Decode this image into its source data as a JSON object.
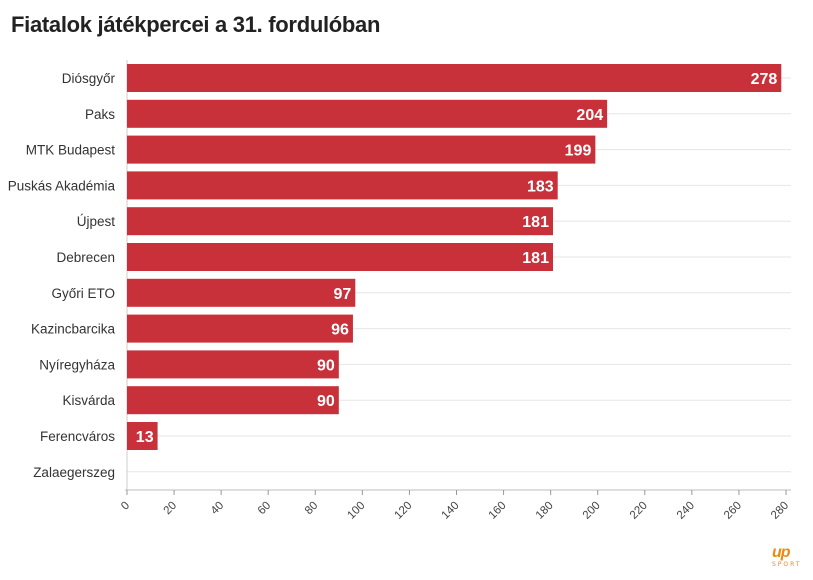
{
  "chart_data": {
    "type": "bar",
    "orientation": "horizontal",
    "title": "Fiatalok játékpercei a 31. fordulóban",
    "categories": [
      "Diósgyőr",
      "Paks",
      "MTK Budapest",
      "Puskás Akadémia",
      "Újpest",
      "Debrecen",
      "Győri ETO",
      "Kazincbarcika",
      "Nyíregyháza",
      "Kisvárda",
      "Ferencváros",
      "Zalaegerszeg"
    ],
    "values": [
      278,
      204,
      199,
      183,
      181,
      181,
      97,
      96,
      90,
      90,
      13,
      0
    ],
    "data_labels": [
      "278",
      "204",
      "199",
      "183",
      "181",
      "181",
      "97",
      "96",
      "90",
      "90",
      "13",
      ""
    ],
    "xticks": [
      "0",
      "20",
      "40",
      "60",
      "80",
      "100",
      "120",
      "140",
      "160",
      "180",
      "200",
      "220",
      "240",
      "260",
      "280"
    ],
    "xlim": [
      0,
      280
    ],
    "grid": true,
    "xlabel": "",
    "ylabel": "",
    "bar_color": "#c8303a",
    "label_color": "#ffffff"
  },
  "branding": {
    "logo_mark": "up",
    "logo_sub": "SPORT",
    "logo_color": "#f0890f"
  }
}
